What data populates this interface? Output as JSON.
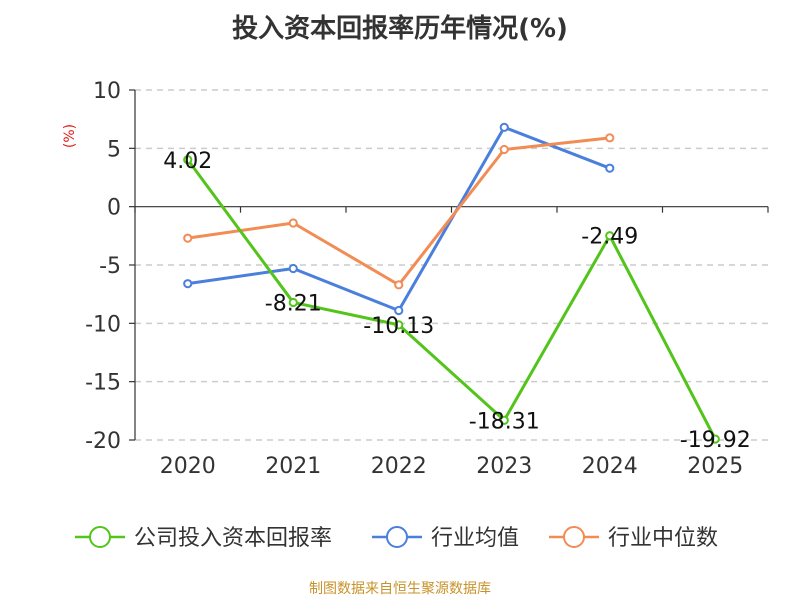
{
  "chart_data": {
    "type": "line",
    "title": "投入资本回报率历年情况(%)",
    "unit_label": "(%)",
    "categories": [
      "2020",
      "2021",
      "2022",
      "2023",
      "2024",
      "2025"
    ],
    "y_ticks": [
      "10",
      "5",
      "0",
      "-5",
      "-10",
      "-15",
      "-20"
    ],
    "ylim": [
      -20,
      10
    ],
    "grid": true,
    "legend_position": "bottom",
    "series": [
      {
        "name": "公司投入资本回报率",
        "color": "#52c41a",
        "values": [
          4.02,
          -8.21,
          -10.13,
          -18.31,
          -2.49,
          -19.92
        ],
        "labels": [
          "4.02",
          "-8.21",
          "-10.13",
          "-18.31",
          "-2.49",
          "-19.92"
        ]
      },
      {
        "name": "行业均值",
        "color": "#4a7fdc",
        "values": [
          -6.6,
          -5.3,
          -8.9,
          6.8,
          3.3,
          null
        ]
      },
      {
        "name": "行业中位数",
        "color": "#f28c55",
        "values": [
          -2.7,
          -1.4,
          -6.7,
          4.9,
          5.9,
          null
        ]
      }
    ]
  },
  "source": "制图数据来自恒生聚源数据库"
}
